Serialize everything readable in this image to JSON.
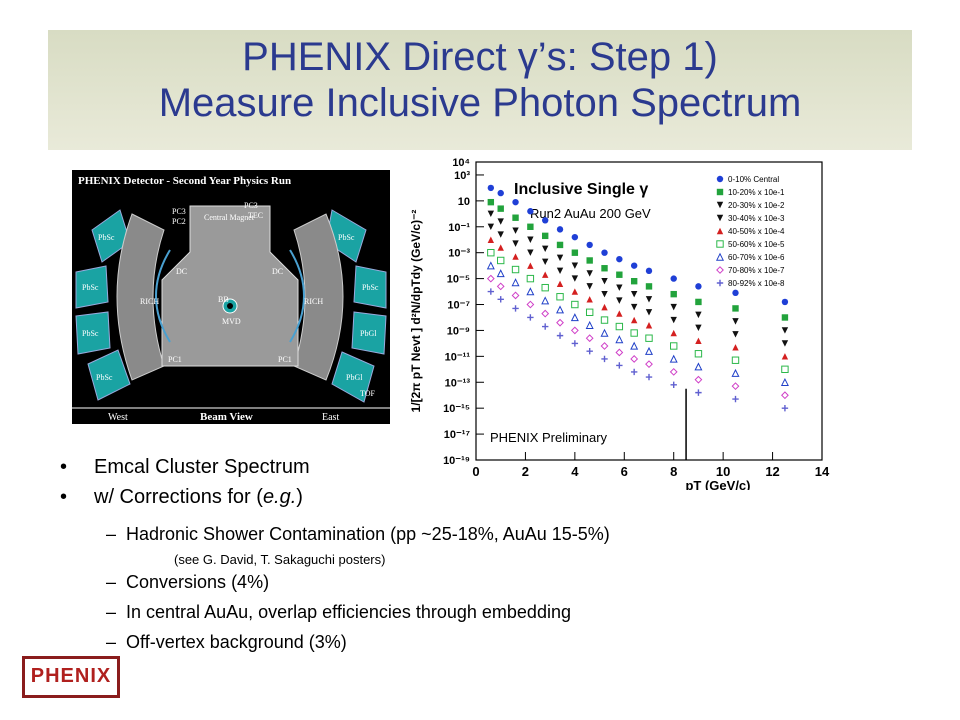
{
  "slide": {
    "title_line1": "PHENIX Direct γ’s: Step 1)",
    "title_line2": "Measure Inclusive Photon Spectrum"
  },
  "detector": {
    "header": "PHENIX Detector - Second Year Physics Run",
    "labels": {
      "pbsc": "PbSc",
      "pbgl": "PbGl",
      "rich": "RICH",
      "dc": "DC",
      "pc1": "PC1",
      "pc2": "PC2",
      "pc3": "PC3",
      "tec": "TEC",
      "tof": "TOF",
      "central_magnet": "Central Magnet",
      "bb": "BB",
      "mvd": "MVD",
      "west": "West",
      "east": "East",
      "beam_view": "Beam View"
    }
  },
  "bullets": [
    {
      "text": "Emcal Cluster Spectrum"
    },
    {
      "text_pre": "w/ Corrections for (",
      "text_em": "e.g.",
      "text_post": ")"
    }
  ],
  "sub_bullets": [
    "Hadronic Shower Contamination (pp ~25-18%, AuAu 15-5%)",
    "Conversions (4%)",
    "In central AuAu, overlap efficiencies through embedding",
    "Off-vertex background (3%)"
  ],
  "note": "(see G. David, T. Sakaguchi posters)",
  "logo_text": "PHENIX",
  "chart_data": {
    "type": "scatter",
    "title": "Inclusive Single γ",
    "subtitle": "Run2 AuAu 200 GeV",
    "annotation": "PHENIX Preliminary",
    "xlabel": "pT (GeV/c)",
    "ylabel": "1/[2π pT Nevt ] d²N/dpTdy (GeV/c)⁻²",
    "xlim": [
      0,
      14
    ],
    "ylim_log10": [
      -19,
      4
    ],
    "x_ticks": [
      "0",
      "2",
      "4",
      "6",
      "8",
      "10",
      "12",
      "14"
    ],
    "y_ticks": [
      "10³",
      "10",
      "10⁻¹",
      "10⁻³",
      "10⁻⁵",
      "10⁻⁷",
      "10⁻⁹",
      "10⁻¹¹",
      "10⁻¹³",
      "10⁻¹⁵",
      "10⁻¹⁷",
      "10⁻¹⁹"
    ],
    "y_tick_top": "10⁴",
    "x": [
      0.6,
      1.0,
      1.6,
      2.2,
      2.8,
      3.4,
      4.0,
      4.6,
      5.2,
      5.8,
      6.4,
      7.0,
      8.0,
      9.0,
      10.5,
      12.5
    ],
    "series": [
      {
        "name": "0-10% Central",
        "color": "#1f3fd6",
        "marker": "circle",
        "y_log10": [
          2.0,
          1.6,
          0.9,
          0.2,
          -0.5,
          -1.2,
          -1.8,
          -2.4,
          -3.0,
          -3.5,
          -4.0,
          -4.4,
          -5.0,
          -5.6,
          -6.1,
          -6.8
        ]
      },
      {
        "name": "10-20% x 10e-1",
        "color": "#22a33c",
        "marker": "square",
        "y_log10": [
          0.9,
          0.4,
          -0.3,
          -1.0,
          -1.7,
          -2.4,
          -3.0,
          -3.6,
          -4.2,
          -4.7,
          -5.2,
          -5.6,
          -6.2,
          -6.8,
          -7.3,
          -8.0
        ]
      },
      {
        "name": "20-30% x 10e-2",
        "color": "#111111",
        "marker": "triangle-down",
        "y_log10": [
          0.0,
          -0.6,
          -1.3,
          -2.0,
          -2.7,
          -3.4,
          -4.0,
          -4.6,
          -5.2,
          -5.7,
          -6.2,
          -6.6,
          -7.2,
          -7.8,
          -8.3,
          -9.0
        ]
      },
      {
        "name": "30-40% x 10e-3",
        "color": "#111111",
        "marker": "triangle-down",
        "y_log10": [
          -1.0,
          -1.6,
          -2.3,
          -3.0,
          -3.7,
          -4.4,
          -5.0,
          -5.6,
          -6.2,
          -6.7,
          -7.2,
          -7.6,
          -8.2,
          -8.8,
          -9.3,
          -10.0
        ]
      },
      {
        "name": "40-50% x 10e-4",
        "color": "#d42020",
        "marker": "triangle",
        "y_log10": [
          -2.0,
          -2.6,
          -3.3,
          -4.0,
          -4.7,
          -5.4,
          -6.0,
          -6.6,
          -7.2,
          -7.7,
          -8.2,
          -8.6,
          -9.2,
          -9.8,
          -10.3,
          -11.0
        ]
      },
      {
        "name": "50-60% x 10e-5",
        "color": "#2cb84a",
        "marker": "square-open",
        "y_log10": [
          -3.0,
          -3.6,
          -4.3,
          -5.0,
          -5.7,
          -6.4,
          -7.0,
          -7.6,
          -8.2,
          -8.7,
          -9.2,
          -9.6,
          -10.2,
          -10.8,
          -11.3,
          -12.0
        ]
      },
      {
        "name": "60-70% x 10e-6",
        "color": "#2040c8",
        "marker": "triangle-open",
        "y_log10": [
          -4.0,
          -4.6,
          -5.3,
          -6.0,
          -6.7,
          -7.4,
          -8.0,
          -8.6,
          -9.2,
          -9.7,
          -10.2,
          -10.6,
          -11.2,
          -11.8,
          -12.3,
          -13.0
        ]
      },
      {
        "name": "70-80% x 10e-7",
        "color": "#d040c8",
        "marker": "diamond-open",
        "y_log10": [
          -5.0,
          -5.6,
          -6.3,
          -7.0,
          -7.7,
          -8.4,
          -9.0,
          -9.6,
          -10.2,
          -10.7,
          -11.2,
          -11.6,
          -12.2,
          -12.8,
          -13.3,
          -14.0
        ]
      },
      {
        "name": "80-92% x 10e-8",
        "color": "#6060d0",
        "marker": "cross",
        "y_log10": [
          -6.0,
          -6.6,
          -7.3,
          -8.0,
          -8.7,
          -9.4,
          -10.0,
          -10.6,
          -11.2,
          -11.7,
          -12.2,
          -12.6,
          -13.2,
          -13.8,
          -14.3,
          -15.0
        ]
      }
    ],
    "legend_position": "top-right",
    "grid": false
  }
}
